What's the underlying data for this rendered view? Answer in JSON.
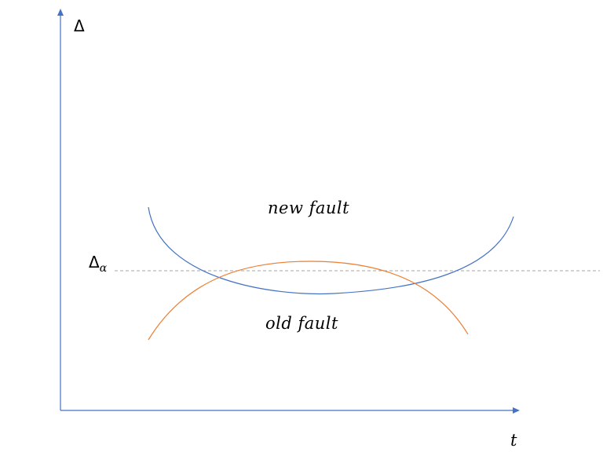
{
  "axes": {
    "y_label": "Δ",
    "x_label": "t"
  },
  "threshold": {
    "symbol": "Δ",
    "subscript": "α"
  },
  "curves": {
    "new_fault_label": "new fault",
    "old_fault_label": "old fault"
  },
  "colors": {
    "axis": "#4472c4",
    "new_fault": "#4472c4",
    "old_fault": "#ed7d31",
    "threshold_line": "#a6a6a6"
  }
}
